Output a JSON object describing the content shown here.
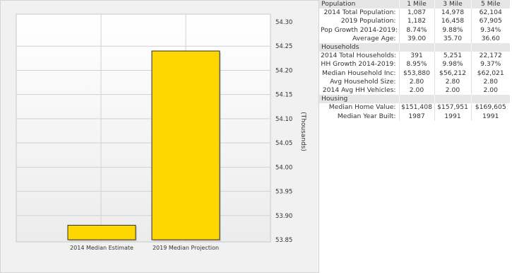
{
  "chart_data": {
    "type": "bar",
    "categories": [
      "2014 Median Estimate",
      "2019 Median Projection"
    ],
    "values": [
      53.88,
      54.24
    ],
    "ylabel": "(Thousands)",
    "ylim": [
      53.85,
      54.3
    ],
    "yticks": [
      "54.30",
      "54.25",
      "54.20",
      "54.15",
      "54.10",
      "54.05",
      "54.00",
      "53.95",
      "53.90",
      "53.85"
    ],
    "grid": true,
    "colors": {
      "bar": "#ffd700",
      "bar_edge": "#2f2f2f",
      "plot_bg": "#ffffff",
      "grid": "#d2d2d2"
    }
  },
  "table": {
    "columns": [
      "1 Mile",
      "3 Mile",
      "5 Mile"
    ],
    "sections": [
      {
        "title": "Population",
        "rows": [
          {
            "label": "2014 Total Population:",
            "values": [
              "1,087",
              "14,978",
              "62,104"
            ]
          },
          {
            "label": "2019 Population:",
            "values": [
              "1,182",
              "16,458",
              "67,905"
            ]
          },
          {
            "label": "Pop Growth 2014-2019:",
            "values": [
              "8.74%",
              "9.88%",
              "9.34%"
            ]
          },
          {
            "label": "Average Age:",
            "values": [
              "39.00",
              "35.70",
              "36.60"
            ]
          }
        ]
      },
      {
        "title": "Households",
        "rows": [
          {
            "label": "2014 Total Households:",
            "values": [
              "391",
              "5,251",
              "22,172"
            ]
          },
          {
            "label": "HH Growth 2014-2019:",
            "values": [
              "8.95%",
              "9.98%",
              "9.37%"
            ]
          },
          {
            "label": "Median Household Inc:",
            "values": [
              "$53,880",
              "$56,212",
              "$62,021"
            ]
          },
          {
            "label": "Avg Household Size:",
            "values": [
              "2.80",
              "2.80",
              "2.80"
            ]
          },
          {
            "label": "2014 Avg HH Vehicles:",
            "values": [
              "2.00",
              "2.00",
              "2.00"
            ]
          }
        ]
      },
      {
        "title": "Housing",
        "rows": [
          {
            "label": "Median Home Value:",
            "values": [
              "$151,408",
              "$157,951",
              "$169,605"
            ]
          },
          {
            "label": "Median Year Built:",
            "values": [
              "1987",
              "1991",
              "1991"
            ]
          }
        ]
      }
    ]
  }
}
